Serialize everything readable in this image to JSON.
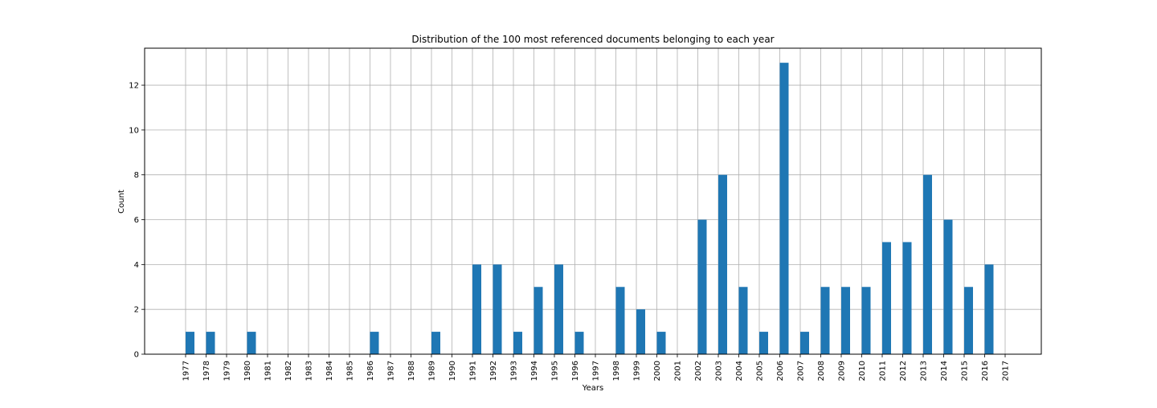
{
  "chart_data": {
    "type": "bar",
    "title": "Distribution of the 100 most referenced documents belonging to each year",
    "xlabel": "Years",
    "ylabel": "Count",
    "ylim": [
      0,
      13.65
    ],
    "yticks": [
      0,
      2,
      4,
      6,
      8,
      10,
      12
    ],
    "grid": true,
    "bar_color": "#1f77b4",
    "categories": [
      "1977",
      "1978",
      "1979",
      "1980",
      "1981",
      "1982",
      "1983",
      "1984",
      "1985",
      "1986",
      "1987",
      "1988",
      "1989",
      "1990",
      "1991",
      "1992",
      "1993",
      "1994",
      "1995",
      "1996",
      "1997",
      "1998",
      "1999",
      "2000",
      "2001",
      "2002",
      "2003",
      "2004",
      "2005",
      "2006",
      "2007",
      "2008",
      "2009",
      "2010",
      "2011",
      "2012",
      "2013",
      "2014",
      "2015",
      "2016",
      "2017"
    ],
    "values": [
      1,
      1,
      0,
      1,
      0,
      0,
      0,
      0,
      0,
      1,
      0,
      0,
      1,
      0,
      4,
      4,
      1,
      3,
      4,
      1,
      0,
      3,
      2,
      1,
      0,
      6,
      8,
      3,
      1,
      13,
      1,
      3,
      3,
      3,
      5,
      5,
      8,
      6,
      3,
      4,
      0
    ]
  }
}
